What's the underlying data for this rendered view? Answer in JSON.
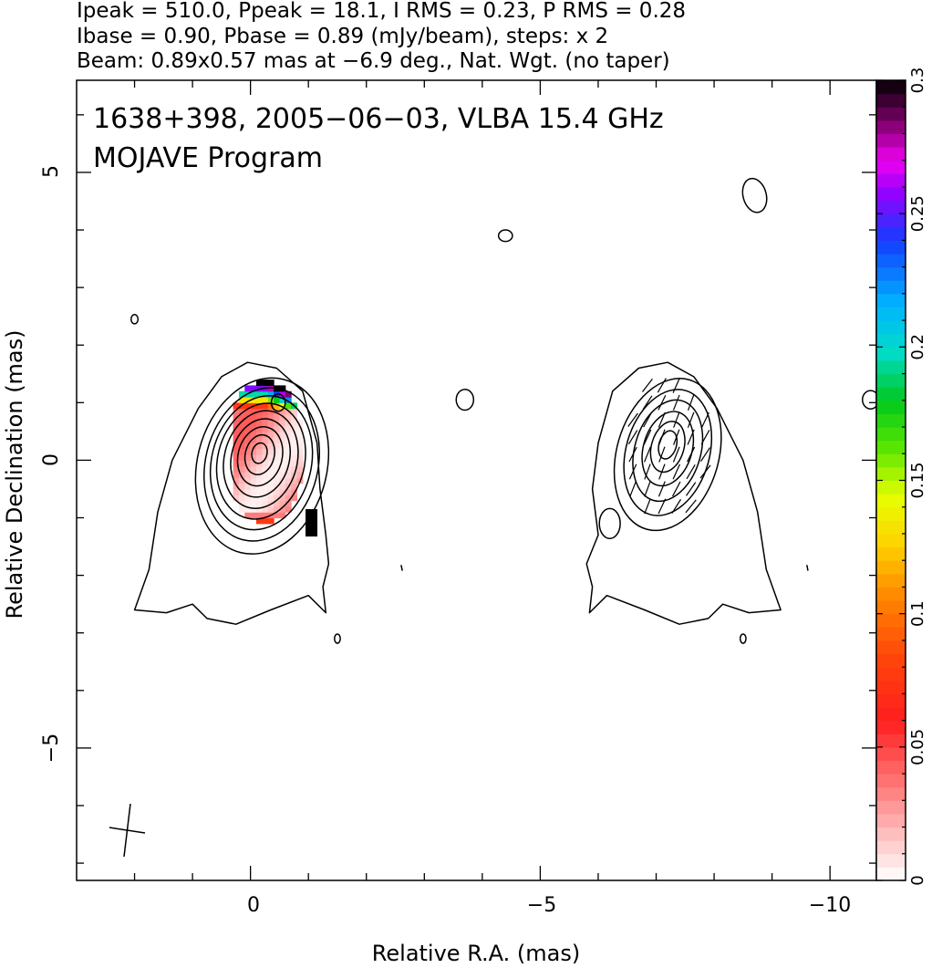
{
  "header": {
    "line1": "Ipeak = 510.0, Ppeak = 18.1, I RMS = 0.23, P RMS = 0.28",
    "line2": "Ibase = 0.90, Pbase = 0.89 (mJy/beam), steps: x 2",
    "line3": "Beam: 0.89x0.57 mas at −6.9 deg., Nat. Wgt. (no taper)"
  },
  "chart_data": [
    {
      "type": "heatmap",
      "title": "1638+398, 2005−06−03, VLBA 15.4 GHz",
      "subtitle": "MOJAVE Program",
      "xlabel": "Relative R.A. (mas)",
      "ylabel": "Relative Declination (mas)",
      "xlim": [
        3.0,
        -10.8
      ],
      "ylim": [
        -7.3,
        6.6
      ],
      "x_reversed": true,
      "grid": false,
      "x_ticks": [
        {
          "value": 0,
          "label": "0"
        },
        {
          "value": -5,
          "label": "−5"
        },
        {
          "value": -10,
          "label": "−10"
        }
      ],
      "y_ticks": [
        {
          "value": 5,
          "label": "5"
        },
        {
          "value": 0,
          "label": "0"
        },
        {
          "value": -5,
          "label": "−5"
        }
      ],
      "beam": {
        "major_mas": 0.89,
        "minor_mas": 0.57,
        "pa_deg": -6.9,
        "center": [
          2.15,
          -6.5
        ]
      },
      "panels": [
        {
          "name": "left-total-intensity-with-fractional-polarization",
          "peak_center": [
            -0.15,
            0.15
          ],
          "contour_levels_mJy_per_beam": [
            0.9,
            1.8,
            3.6,
            7.2,
            14.4,
            28.8,
            57.6,
            115.2,
            230.4
          ],
          "color_region": {
            "ra_range": [
              -1.05,
              0.3
            ],
            "dec_range": [
              -1.2,
              1.45
            ],
            "typical_value": 0.04
          }
        },
        {
          "name": "right-polarized-intensity-with-evpa-ticks",
          "peak_center": [
            -7.2,
            0.3
          ],
          "contour_levels_mJy_per_beam": [
            0.89,
            1.78,
            3.56,
            7.12,
            14.24,
            28.48,
            56.96
          ],
          "evpa_ticks": true
        }
      ]
    },
    {
      "type": "heatmap",
      "name": "colorbar",
      "colormap": "rainbow-fractional-polarization",
      "range": [
        0,
        0.3
      ],
      "ticks": [
        {
          "value": 0,
          "label": "0"
        },
        {
          "value": 0.05,
          "label": "0.05"
        },
        {
          "value": 0.1,
          "label": "0.1"
        },
        {
          "value": 0.15,
          "label": "0.15"
        },
        {
          "value": 0.2,
          "label": "0.2"
        },
        {
          "value": 0.25,
          "label": "0.25"
        },
        {
          "value": 0.3,
          "label": "0.3"
        }
      ]
    }
  ]
}
